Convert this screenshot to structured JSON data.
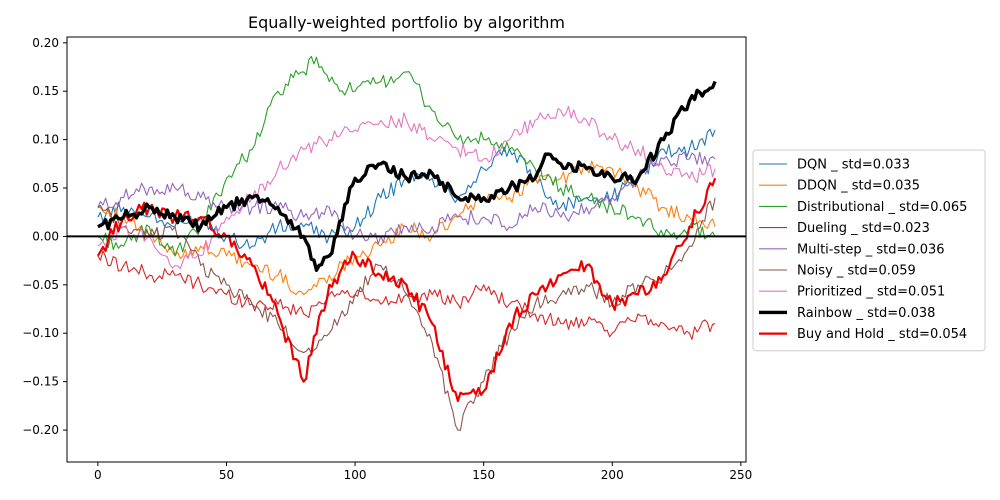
{
  "chart_data": {
    "type": "line",
    "title": "Equally-weighted portfolio by algorithm",
    "xlabel": "",
    "ylabel": "",
    "xlim": [
      -12,
      252
    ],
    "ylim": [
      -0.233,
      0.206
    ],
    "xticks": [
      0,
      50,
      100,
      150,
      200,
      250
    ],
    "yticks": [
      -0.2,
      -0.15,
      -0.1,
      -0.05,
      0.0,
      0.05,
      0.1,
      0.15,
      0.2
    ],
    "ytick_labels": [
      "−0.20",
      "−0.15",
      "−0.10",
      "−0.05",
      "0.00",
      "0.05",
      "0.10",
      "0.15",
      "0.20"
    ],
    "grid": false,
    "legend_position": "right-outside",
    "reference_line": {
      "y": 0,
      "color": "#000000"
    },
    "series": [
      {
        "name": "DQN _ std=0.033",
        "color": "#1f77b4",
        "width": 1.1,
        "points": [
          [
            0,
            0.02
          ],
          [
            10,
            0.03
          ],
          [
            20,
            0.02
          ],
          [
            30,
            0.01
          ],
          [
            40,
            0.02
          ],
          [
            50,
            0.0
          ],
          [
            60,
            -0.01
          ],
          [
            70,
            0.01
          ],
          [
            80,
            0.01
          ],
          [
            90,
            0.0
          ],
          [
            100,
            0.01
          ],
          [
            110,
            0.04
          ],
          [
            120,
            0.06
          ],
          [
            130,
            0.06
          ],
          [
            140,
            0.04
          ],
          [
            150,
            0.07
          ],
          [
            160,
            0.09
          ],
          [
            170,
            0.06
          ],
          [
            180,
            0.03
          ],
          [
            190,
            0.04
          ],
          [
            200,
            0.04
          ],
          [
            210,
            0.06
          ],
          [
            220,
            0.09
          ],
          [
            230,
            0.09
          ],
          [
            240,
            0.11
          ]
        ]
      },
      {
        "name": "DDQN _ std=0.035",
        "color": "#ff7f0e",
        "width": 1.1,
        "points": [
          [
            0,
            0.03
          ],
          [
            10,
            0.02
          ],
          [
            20,
            0.0
          ],
          [
            30,
            -0.02
          ],
          [
            40,
            -0.01
          ],
          [
            50,
            -0.02
          ],
          [
            60,
            -0.03
          ],
          [
            70,
            -0.04
          ],
          [
            80,
            -0.06
          ],
          [
            90,
            -0.04
          ],
          [
            100,
            -0.02
          ],
          [
            110,
            -0.01
          ],
          [
            120,
            0.01
          ],
          [
            130,
            0.0
          ],
          [
            140,
            0.02
          ],
          [
            150,
            0.04
          ],
          [
            160,
            0.04
          ],
          [
            170,
            0.06
          ],
          [
            180,
            0.06
          ],
          [
            190,
            0.07
          ],
          [
            200,
            0.07
          ],
          [
            210,
            0.05
          ],
          [
            220,
            0.03
          ],
          [
            230,
            0.02
          ],
          [
            240,
            0.01
          ]
        ]
      },
      {
        "name": "Distributional _ std=0.065",
        "color": "#2ca02c",
        "width": 1.1,
        "points": [
          [
            0,
            0.0
          ],
          [
            10,
            -0.01
          ],
          [
            20,
            0.01
          ],
          [
            30,
            -0.02
          ],
          [
            40,
            0.01
          ],
          [
            50,
            0.06
          ],
          [
            60,
            0.09
          ],
          [
            70,
            0.15
          ],
          [
            80,
            0.17
          ],
          [
            85,
            0.185
          ],
          [
            90,
            0.16
          ],
          [
            100,
            0.15
          ],
          [
            110,
            0.16
          ],
          [
            120,
            0.17
          ],
          [
            130,
            0.13
          ],
          [
            140,
            0.1
          ],
          [
            150,
            0.1
          ],
          [
            160,
            0.09
          ],
          [
            170,
            0.07
          ],
          [
            180,
            0.05
          ],
          [
            190,
            0.04
          ],
          [
            200,
            0.03
          ],
          [
            210,
            0.02
          ],
          [
            220,
            0.0
          ],
          [
            230,
            0.01
          ],
          [
            240,
            0.0
          ]
        ]
      },
      {
        "name": "Dueling _ std=0.023",
        "color": "#d62728",
        "width": 1.1,
        "points": [
          [
            0,
            -0.02
          ],
          [
            10,
            -0.03
          ],
          [
            20,
            -0.04
          ],
          [
            30,
            -0.04
          ],
          [
            40,
            -0.05
          ],
          [
            50,
            -0.06
          ],
          [
            60,
            -0.07
          ],
          [
            70,
            -0.07
          ],
          [
            80,
            -0.08
          ],
          [
            90,
            -0.06
          ],
          [
            100,
            -0.06
          ],
          [
            110,
            -0.07
          ],
          [
            120,
            -0.06
          ],
          [
            130,
            -0.06
          ],
          [
            140,
            -0.07
          ],
          [
            150,
            -0.05
          ],
          [
            160,
            -0.07
          ],
          [
            170,
            -0.08
          ],
          [
            180,
            -0.09
          ],
          [
            190,
            -0.09
          ],
          [
            200,
            -0.1
          ],
          [
            210,
            -0.08
          ],
          [
            220,
            -0.09
          ],
          [
            230,
            -0.1
          ],
          [
            240,
            -0.09
          ]
        ]
      },
      {
        "name": "Multi-step _ std=0.036",
        "color": "#9467bd",
        "width": 1.1,
        "points": [
          [
            0,
            0.03
          ],
          [
            10,
            0.04
          ],
          [
            20,
            0.05
          ],
          [
            30,
            0.05
          ],
          [
            40,
            0.04
          ],
          [
            50,
            0.03
          ],
          [
            60,
            0.03
          ],
          [
            70,
            0.03
          ],
          [
            80,
            0.02
          ],
          [
            90,
            0.03
          ],
          [
            100,
            0.0
          ],
          [
            110,
            0.0
          ],
          [
            120,
            0.01
          ],
          [
            130,
            0.01
          ],
          [
            140,
            0.02
          ],
          [
            150,
            0.02
          ],
          [
            160,
            0.01
          ],
          [
            170,
            0.03
          ],
          [
            180,
            0.02
          ],
          [
            190,
            0.03
          ],
          [
            200,
            0.04
          ],
          [
            210,
            0.06
          ],
          [
            220,
            0.08
          ],
          [
            230,
            0.08
          ],
          [
            240,
            0.08
          ]
        ]
      },
      {
        "name": "Noisy _ std=0.059",
        "color": "#8c564b",
        "width": 1.1,
        "points": [
          [
            0,
            0.03
          ],
          [
            10,
            0.01
          ],
          [
            20,
            0.0
          ],
          [
            30,
            0.01
          ],
          [
            40,
            -0.03
          ],
          [
            50,
            -0.05
          ],
          [
            60,
            -0.07
          ],
          [
            70,
            -0.09
          ],
          [
            80,
            -0.12
          ],
          [
            90,
            -0.1
          ],
          [
            100,
            -0.06
          ],
          [
            110,
            -0.03
          ],
          [
            120,
            -0.06
          ],
          [
            130,
            -0.11
          ],
          [
            140,
            -0.2
          ],
          [
            145,
            -0.17
          ],
          [
            150,
            -0.15
          ],
          [
            160,
            -0.1
          ],
          [
            170,
            -0.07
          ],
          [
            180,
            -0.06
          ],
          [
            190,
            -0.05
          ],
          [
            200,
            -0.07
          ],
          [
            210,
            -0.05
          ],
          [
            220,
            -0.04
          ],
          [
            230,
            -0.01
          ],
          [
            240,
            0.04
          ]
        ]
      },
      {
        "name": "Prioritized _ std=0.051",
        "color": "#e377c2",
        "width": 1.1,
        "points": [
          [
            0,
            -0.01
          ],
          [
            10,
            0.01
          ],
          [
            20,
            0.0
          ],
          [
            30,
            -0.03
          ],
          [
            40,
            -0.02
          ],
          [
            50,
            0.02
          ],
          [
            60,
            0.04
          ],
          [
            70,
            0.07
          ],
          [
            80,
            0.09
          ],
          [
            90,
            0.1
          ],
          [
            100,
            0.11
          ],
          [
            110,
            0.12
          ],
          [
            120,
            0.12
          ],
          [
            130,
            0.1
          ],
          [
            140,
            0.09
          ],
          [
            150,
            0.08
          ],
          [
            160,
            0.1
          ],
          [
            170,
            0.12
          ],
          [
            180,
            0.13
          ],
          [
            190,
            0.12
          ],
          [
            200,
            0.1
          ],
          [
            210,
            0.09
          ],
          [
            220,
            0.07
          ],
          [
            230,
            0.06
          ],
          [
            240,
            0.07
          ]
        ]
      },
      {
        "name": "Rainbow _ std=0.038",
        "color": "#000000",
        "width": 3.4,
        "points": [
          [
            0,
            0.01
          ],
          [
            10,
            0.02
          ],
          [
            20,
            0.03
          ],
          [
            30,
            0.02
          ],
          [
            40,
            0.01
          ],
          [
            50,
            0.03
          ],
          [
            60,
            0.04
          ],
          [
            70,
            0.03
          ],
          [
            80,
            0.0
          ],
          [
            85,
            -0.035
          ],
          [
            90,
            -0.02
          ],
          [
            100,
            0.06
          ],
          [
            110,
            0.075
          ],
          [
            120,
            0.06
          ],
          [
            130,
            0.065
          ],
          [
            140,
            0.04
          ],
          [
            150,
            0.04
          ],
          [
            160,
            0.05
          ],
          [
            170,
            0.06
          ],
          [
            175,
            0.085
          ],
          [
            180,
            0.075
          ],
          [
            190,
            0.07
          ],
          [
            200,
            0.06
          ],
          [
            210,
            0.06
          ],
          [
            220,
            0.1
          ],
          [
            230,
            0.14
          ],
          [
            240,
            0.16
          ]
        ]
      },
      {
        "name": "Buy and Hold _ std=0.054",
        "color": "#ee0000",
        "width": 2.2,
        "points": [
          [
            0,
            -0.02
          ],
          [
            10,
            0.02
          ],
          [
            20,
            0.03
          ],
          [
            30,
            0.02
          ],
          [
            40,
            0.02
          ],
          [
            50,
            0.0
          ],
          [
            60,
            -0.03
          ],
          [
            70,
            -0.08
          ],
          [
            80,
            -0.15
          ],
          [
            90,
            -0.05
          ],
          [
            100,
            -0.02
          ],
          [
            110,
            -0.04
          ],
          [
            120,
            -0.05
          ],
          [
            130,
            -0.09
          ],
          [
            140,
            -0.17
          ],
          [
            150,
            -0.16
          ],
          [
            160,
            -0.09
          ],
          [
            170,
            -0.06
          ],
          [
            180,
            -0.04
          ],
          [
            190,
            -0.03
          ],
          [
            200,
            -0.07
          ],
          [
            210,
            -0.06
          ],
          [
            220,
            -0.04
          ],
          [
            230,
            0.01
          ],
          [
            240,
            0.06
          ]
        ]
      }
    ]
  }
}
